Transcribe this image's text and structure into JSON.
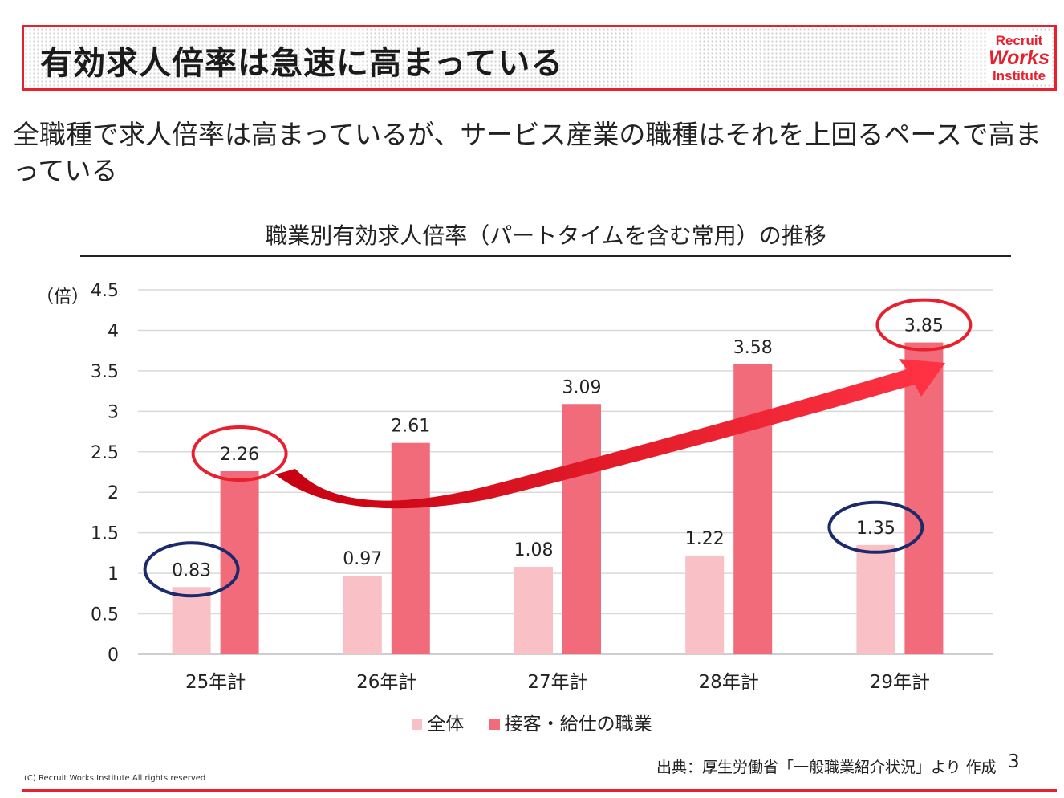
{
  "header": {
    "title": "有効求人倍率は急速に高まっている",
    "logo": {
      "line1": "Recruit",
      "line2": "Works",
      "line3": "Institute"
    }
  },
  "subtitle": "全職種で求人倍率は高まっているが、サービス産業の職種はそれを上回るペースで高まっている",
  "chart_data": {
    "type": "bar",
    "title": "職業別有効求人倍率（パートタイムを含む常用）の推移",
    "ylabel": "（倍）",
    "xlabel": "",
    "ylim": [
      0,
      4.5
    ],
    "yticks": [
      "0",
      "0.5",
      "1",
      "1.5",
      "2",
      "2.5",
      "3",
      "3.5",
      "4",
      "4.5"
    ],
    "categories": [
      "25年計",
      "26年計",
      "27年計",
      "28年計",
      "29年計"
    ],
    "series": [
      {
        "name": "全体",
        "color": "#f9c0c6",
        "values": [
          0.83,
          0.97,
          1.08,
          1.22,
          1.35
        ],
        "labels": [
          "0.83",
          "0.97",
          "1.08",
          "1.22",
          "1.35"
        ]
      },
      {
        "name": "接客・給仕の職業",
        "color": "#f26b7a",
        "values": [
          2.26,
          2.61,
          3.09,
          3.58,
          3.85
        ],
        "labels": [
          "2.26",
          "2.61",
          "3.09",
          "3.58",
          "3.85"
        ]
      }
    ],
    "legend_position": "bottom",
    "grid": true,
    "highlight_colors": {
      "red": "#e8202e",
      "navy": "#1c2a6b"
    }
  },
  "footer": {
    "source": "出典：厚生労働省「一般職業紹介状況」より 作成",
    "page_number": "3",
    "copyright": "(C) Recruit Works Institute All rights reserved"
  }
}
